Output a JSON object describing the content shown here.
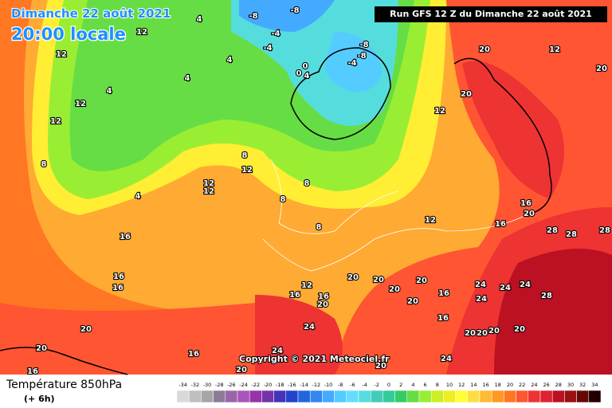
{
  "header": {
    "date": "Dimanche 22 août 2021",
    "time": "20:00 locale",
    "run": "Run GFS 12 Z du Dimanche 22 août 2021"
  },
  "copyright": "Copyright © 2021 Meteociel.fr",
  "footer": {
    "title": "Température 850hPa",
    "subtitle": "(+ 6h)"
  },
  "scale": {
    "values": [
      -34,
      -32,
      -30,
      -28,
      -26,
      -24,
      -22,
      -20,
      -18,
      -16,
      -14,
      -12,
      -10,
      -8,
      -6,
      -4,
      -2,
      0,
      2,
      4,
      6,
      8,
      10,
      12,
      14,
      16,
      18,
      20,
      22,
      24,
      26,
      28,
      30,
      32,
      34
    ],
    "colors": [
      "#d9d9d9",
      "#bfbfbf",
      "#a6a6a6",
      "#8c7a99",
      "#9966aa",
      "#aa55bb",
      "#9933aa",
      "#7733aa",
      "#4433bb",
      "#2244cc",
      "#2266dd",
      "#3388ee",
      "#44aaff",
      "#55ccff",
      "#66ddff",
      "#55dddd",
      "#44ccbb",
      "#33cc99",
      "#33cc66",
      "#66dd44",
      "#99ee33",
      "#ccee22",
      "#eeee22",
      "#ffff33",
      "#ffdd44",
      "#ffbb33",
      "#ff9922",
      "#ff7722",
      "#ff5533",
      "#ee3333",
      "#dd2233",
      "#bb1122",
      "#991111",
      "#660808",
      "#220000"
    ]
  },
  "map": {
    "contour_labels": [
      "-8",
      "-8",
      "-4",
      "-4",
      "-8",
      "-8",
      "-4",
      "0",
      "0",
      "4",
      "4",
      "4",
      "4",
      "4",
      "12",
      "12",
      "12",
      "12",
      "8",
      "4",
      "12",
      "12",
      "12",
      "8",
      "8",
      "8",
      "8",
      "12",
      "12",
      "20",
      "20",
      "12",
      "20",
      "16",
      "20",
      "28",
      "28",
      "28",
      "16",
      "16",
      "16",
      "16",
      "20",
      "16",
      "20",
      "20",
      "12",
      "16",
      "16",
      "20",
      "20",
      "20",
      "20",
      "20",
      "20",
      "16",
      "24",
      "24",
      "24",
      "28",
      "24",
      "16",
      "20",
      "20",
      "20",
      "20",
      "24",
      "24",
      "20",
      "16",
      "24"
    ]
  }
}
